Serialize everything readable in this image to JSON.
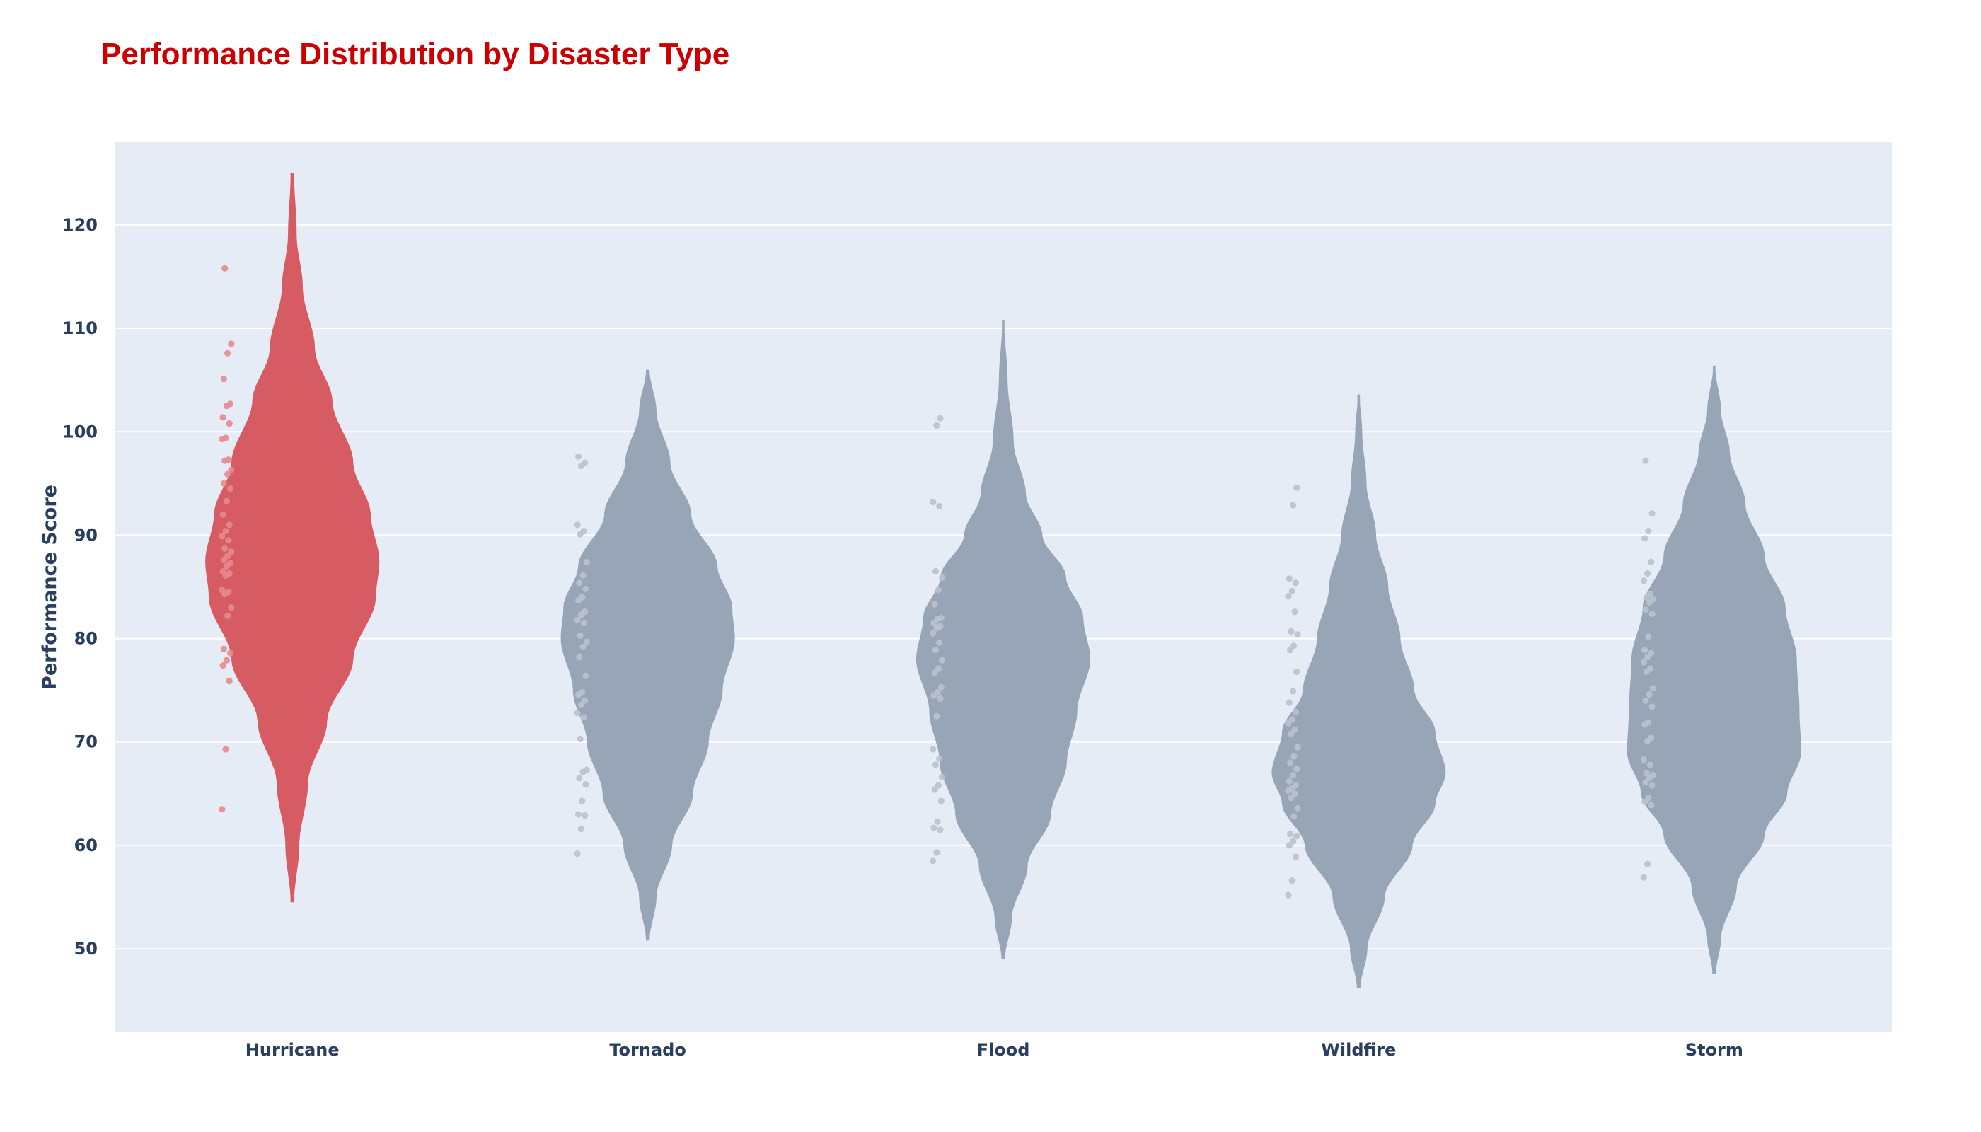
{
  "chart_data": {
    "type": "violin",
    "title": "Performance Distribution by Disaster Type",
    "xlabel": "",
    "ylabel": "Performance Score",
    "ylim": [
      42,
      128
    ],
    "yticks": [
      50,
      60,
      70,
      80,
      90,
      100,
      110,
      120
    ],
    "grid": true,
    "colors": {
      "highlight": "#d6535a",
      "default": "#97a5b6",
      "highlight_points": "#e58a8f",
      "default_points": "#b9c2cd",
      "plot_bg": "#e5ecf6",
      "grid": "#ffffff"
    },
    "categories": [
      "Hurricane",
      "Tornado",
      "Flood",
      "Wildfire",
      "Storm"
    ],
    "series": [
      {
        "name": "Hurricane",
        "highlight": true,
        "range": [
          54.5,
          125
        ],
        "profile": [
          [
            54.5,
            0.02
          ],
          [
            60,
            0.08
          ],
          [
            66,
            0.18
          ],
          [
            72,
            0.4
          ],
          [
            78,
            0.7
          ],
          [
            84,
            0.96
          ],
          [
            87.5,
            1.0
          ],
          [
            92,
            0.9
          ],
          [
            97,
            0.7
          ],
          [
            103,
            0.46
          ],
          [
            108,
            0.26
          ],
          [
            114,
            0.12
          ],
          [
            119,
            0.05
          ],
          [
            125,
            0.02
          ]
        ],
        "points": [
          63.5,
          69.3,
          75.9,
          77.4,
          77.9,
          78.6,
          79.0,
          82.2,
          83.0,
          84.3,
          84.5,
          84.7,
          86.1,
          86.3,
          86.5,
          87.0,
          87.3,
          87.6,
          88.0,
          88.4,
          88.7,
          89.5,
          89.9,
          90.4,
          91.0,
          92.0,
          93.3,
          94.5,
          95.0,
          95.9,
          96.3,
          97.2,
          97.3,
          99.3,
          99.4,
          100.8,
          101.4,
          102.5,
          102.7,
          105.1,
          107.6,
          108.5,
          115.8
        ]
      },
      {
        "name": "Tornado",
        "highlight": false,
        "range": [
          50.8,
          106
        ],
        "profile": [
          [
            50.8,
            0.02
          ],
          [
            55,
            0.1
          ],
          [
            60,
            0.28
          ],
          [
            65,
            0.52
          ],
          [
            70,
            0.7
          ],
          [
            75,
            0.86
          ],
          [
            80,
            1.0
          ],
          [
            83,
            0.97
          ],
          [
            87,
            0.8
          ],
          [
            92,
            0.5
          ],
          [
            97,
            0.26
          ],
          [
            102,
            0.1
          ],
          [
            106,
            0.02
          ]
        ],
        "points": [
          59.2,
          61.6,
          62.9,
          63.0,
          64.3,
          65.9,
          66.5,
          67.1,
          67.3,
          70.3,
          72.4,
          72.8,
          73.6,
          74.0,
          74.6,
          74.8,
          76.4,
          78.2,
          79.2,
          79.7,
          80.3,
          81.5,
          81.8,
          82.3,
          82.6,
          83.7,
          84.0,
          84.8,
          85.4,
          86.1,
          87.4,
          90.1,
          90.4,
          91.0,
          96.7,
          97.0,
          97.6
        ]
      },
      {
        "name": "Flood",
        "highlight": false,
        "range": [
          49,
          110.8
        ],
        "profile": [
          [
            49,
            0.02
          ],
          [
            53,
            0.1
          ],
          [
            58,
            0.28
          ],
          [
            63,
            0.55
          ],
          [
            68,
            0.73
          ],
          [
            73,
            0.85
          ],
          [
            78,
            1.0
          ],
          [
            82,
            0.92
          ],
          [
            86,
            0.72
          ],
          [
            90,
            0.45
          ],
          [
            94,
            0.26
          ],
          [
            99,
            0.12
          ],
          [
            105,
            0.05
          ],
          [
            110.8,
            0.01
          ]
        ],
        "points": [
          58.5,
          59.3,
          61.5,
          61.7,
          62.3,
          64.3,
          65.4,
          65.8,
          66.6,
          67.8,
          68.4,
          69.3,
          72.5,
          74.2,
          74.5,
          74.8,
          75.3,
          76.7,
          77.1,
          77.9,
          78.9,
          79.6,
          80.5,
          81.0,
          81.2,
          81.5,
          81.9,
          82.0,
          83.3,
          84.7,
          85.9,
          86.5,
          92.8,
          93.2,
          100.6,
          101.3
        ]
      },
      {
        "name": "Wildfire",
        "highlight": false,
        "range": [
          46.2,
          103.6
        ],
        "profile": [
          [
            46.2,
            0.02
          ],
          [
            50,
            0.1
          ],
          [
            55,
            0.3
          ],
          [
            60,
            0.62
          ],
          [
            64,
            0.88
          ],
          [
            67,
            1.0
          ],
          [
            71,
            0.88
          ],
          [
            75,
            0.64
          ],
          [
            80,
            0.48
          ],
          [
            85,
            0.34
          ],
          [
            90,
            0.2
          ],
          [
            95,
            0.09
          ],
          [
            100,
            0.04
          ],
          [
            103.6,
            0.01
          ]
        ],
        "points": [
          55.2,
          56.6,
          58.9,
          60.0,
          60.4,
          60.9,
          61.1,
          62.8,
          63.6,
          64.6,
          65.0,
          65.3,
          65.5,
          65.8,
          66.2,
          66.8,
          67.4,
          68.0,
          68.6,
          69.5,
          70.8,
          71.2,
          71.8,
          72.2,
          72.9,
          73.8,
          74.9,
          76.8,
          78.9,
          79.3,
          80.4,
          80.7,
          82.6,
          84.1,
          84.6,
          85.4,
          85.8,
          92.9,
          94.6
        ]
      },
      {
        "name": "Storm",
        "highlight": false,
        "range": [
          47.6,
          106.4
        ],
        "profile": [
          [
            47.6,
            0.02
          ],
          [
            51,
            0.08
          ],
          [
            56,
            0.26
          ],
          [
            61,
            0.58
          ],
          [
            65,
            0.84
          ],
          [
            69,
            1.0
          ],
          [
            73,
            0.98
          ],
          [
            78,
            0.95
          ],
          [
            83,
            0.82
          ],
          [
            88,
            0.58
          ],
          [
            93,
            0.36
          ],
          [
            98,
            0.18
          ],
          [
            102,
            0.08
          ],
          [
            106.4,
            0.01
          ]
        ],
        "points": [
          56.9,
          58.2,
          63.9,
          64.2,
          64.6,
          65.8,
          66.1,
          66.5,
          66.8,
          67.0,
          67.8,
          68.3,
          70.1,
          70.4,
          71.7,
          71.9,
          73.4,
          74.0,
          74.6,
          75.2,
          76.8,
          77.1,
          77.7,
          78.2,
          78.6,
          78.9,
          80.2,
          82.4,
          82.8,
          83.5,
          83.8,
          84.0,
          84.3,
          85.6,
          86.3,
          87.4,
          89.7,
          90.4,
          92.1,
          97.2
        ]
      }
    ]
  }
}
